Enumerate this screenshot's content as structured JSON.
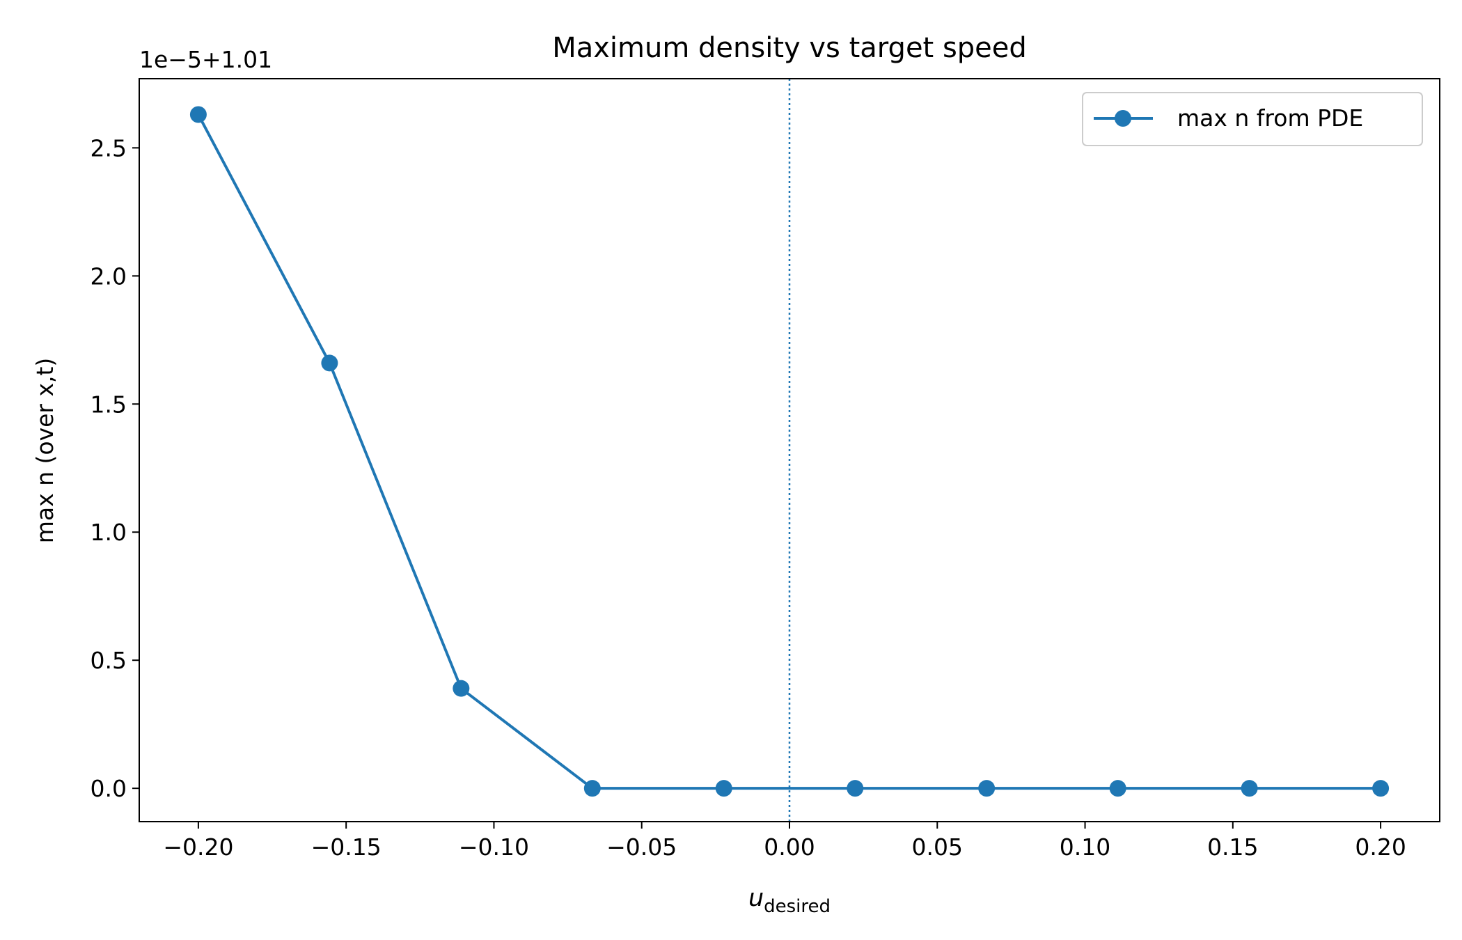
{
  "chart_data": {
    "type": "line",
    "title": "Maximum density vs target speed",
    "xlabel_main": "u",
    "xlabel_sub": "desired",
    "ylabel": "max n (over x,t)",
    "y_offset_text": "1e−5+1.01",
    "xlim": [
      -0.22,
      0.22
    ],
    "ylim": [
      -0.13,
      2.77
    ],
    "x_ticks": [
      -0.2,
      -0.15,
      -0.1,
      -0.05,
      0.0,
      0.05,
      0.1,
      0.15,
      0.2
    ],
    "x_tick_labels": [
      "−0.20",
      "−0.15",
      "−0.10",
      "−0.05",
      "0.00",
      "0.05",
      "0.10",
      "0.15",
      "0.20"
    ],
    "y_ticks": [
      0.0,
      0.5,
      1.0,
      1.5,
      2.0,
      2.5
    ],
    "y_tick_labels": [
      "0.0",
      "0.5",
      "1.0",
      "1.5",
      "2.0",
      "2.5"
    ],
    "vline_x": 0.0,
    "grid": false,
    "legend_position": "top-right",
    "series": [
      {
        "name": "max n from PDE",
        "color": "#1f77b4",
        "x": [
          -0.2,
          -0.1556,
          -0.1111,
          -0.0667,
          -0.0222,
          0.0222,
          0.0667,
          0.1111,
          0.1556,
          0.2
        ],
        "y": [
          2.63,
          1.66,
          0.39,
          0.0,
          0.0,
          0.0,
          0.0,
          0.0,
          0.0,
          0.0
        ]
      }
    ]
  }
}
